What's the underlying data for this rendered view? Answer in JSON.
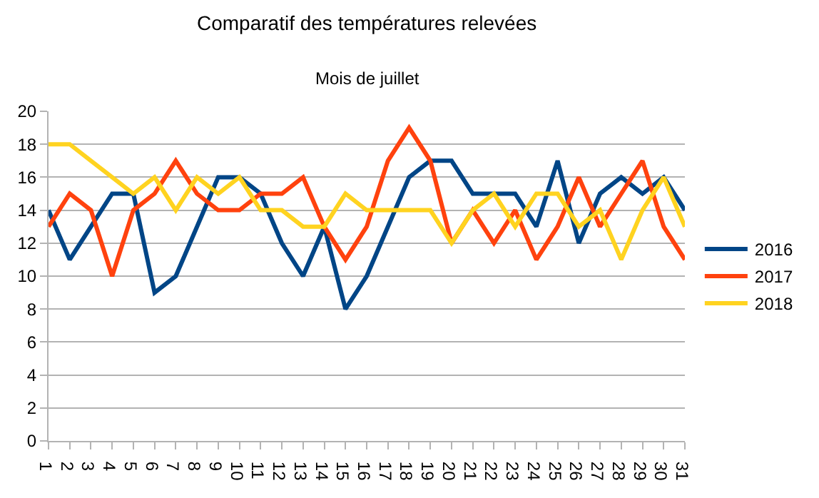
{
  "chart_data": {
    "type": "line",
    "title": "Comparatif des températures relevées",
    "subtitle": "Mois de juillet",
    "categories": [
      "1",
      "2",
      "3",
      "4",
      "5",
      "6",
      "7",
      "8",
      "9",
      "10",
      "11",
      "12",
      "13",
      "14",
      "15",
      "16",
      "17",
      "18",
      "19",
      "20",
      "21",
      "22",
      "23",
      "24",
      "25",
      "26",
      "27",
      "28",
      "29",
      "30",
      "31"
    ],
    "series": [
      {
        "name": "2016",
        "color": "#004586",
        "values": [
          14,
          11,
          13,
          15,
          15,
          9,
          10,
          13,
          16,
          16,
          15,
          12,
          10,
          13,
          8,
          10,
          13,
          16,
          17,
          17,
          15,
          15,
          15,
          13,
          17,
          12,
          15,
          16,
          15,
          16,
          14
        ]
      },
      {
        "name": "2017",
        "color": "#ff420e",
        "values": [
          13,
          15,
          14,
          10,
          14,
          15,
          17,
          15,
          14,
          14,
          15,
          15,
          16,
          13,
          11,
          13,
          17,
          19,
          17,
          12,
          14,
          12,
          14,
          11,
          13,
          16,
          13,
          15,
          17,
          13,
          11
        ]
      },
      {
        "name": "2018",
        "color": "#ffd320",
        "values": [
          18,
          18,
          17,
          16,
          15,
          16,
          14,
          16,
          15,
          16,
          14,
          14,
          13,
          13,
          15,
          14,
          14,
          14,
          14,
          12,
          14,
          15,
          13,
          15,
          15,
          13,
          14,
          11,
          14,
          16,
          13
        ]
      }
    ],
    "ylim": [
      0,
      20
    ],
    "yticks": [
      0,
      2,
      4,
      6,
      8,
      10,
      12,
      14,
      16,
      18,
      20
    ],
    "grid": "y",
    "legend": "right",
    "marker": "none",
    "line_style": "solid"
  }
}
